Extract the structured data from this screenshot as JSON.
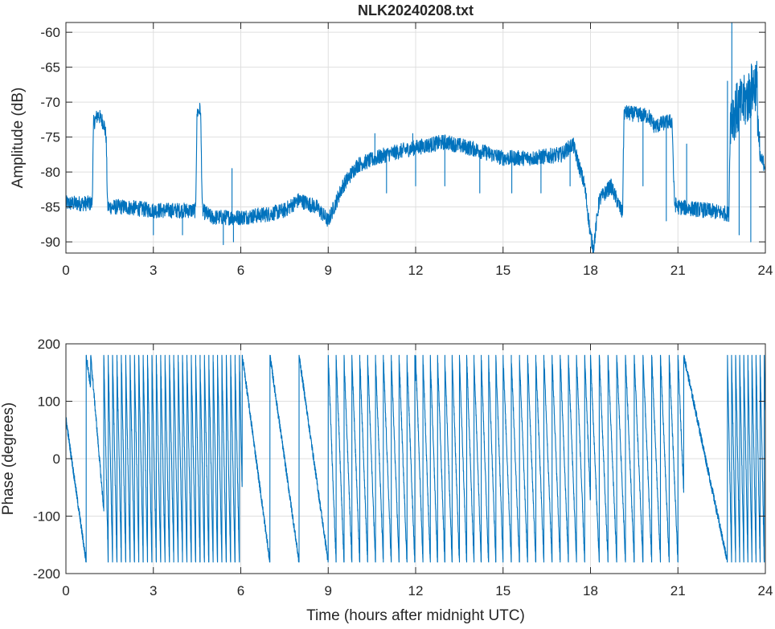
{
  "chart_data": [
    {
      "type": "line",
      "title": "NLK20240208.txt",
      "xlabel": "",
      "ylabel": "Amplitude (dB)",
      "xlim": [
        0,
        24
      ],
      "ylim": [
        -91.6,
        -58.6
      ],
      "xticks": [
        0,
        3,
        6,
        9,
        12,
        15,
        18,
        21,
        24
      ],
      "yticks": [
        -90,
        -85,
        -80,
        -75,
        -70,
        -65,
        -60
      ],
      "grid": true,
      "color": "#0072bd",
      "series": [
        {
          "name": "Amplitude",
          "keypoints": [
            [
              0,
              -84.5
            ],
            [
              0.9,
              -84.5
            ],
            [
              0.95,
              -73
            ],
            [
              1.1,
              -71.8
            ],
            [
              1.3,
              -73
            ],
            [
              1.38,
              -75
            ],
            [
              1.43,
              -85
            ],
            [
              2,
              -85
            ],
            [
              3,
              -85.5
            ],
            [
              4,
              -85.5
            ],
            [
              4.45,
              -85.5
            ],
            [
              4.5,
              -71.5
            ],
            [
              4.62,
              -71
            ],
            [
              4.68,
              -85.5
            ],
            [
              5,
              -86.5
            ],
            [
              6,
              -86.5
            ],
            [
              7,
              -86
            ],
            [
              7.5,
              -85.5
            ],
            [
              8,
              -84
            ],
            [
              8.6,
              -85
            ],
            [
              9,
              -87
            ],
            [
              9.5,
              -82
            ],
            [
              10,
              -79
            ],
            [
              11,
              -77.5
            ],
            [
              12,
              -76.5
            ],
            [
              13,
              -75.7
            ],
            [
              14,
              -76.7
            ],
            [
              15,
              -78
            ],
            [
              16,
              -78
            ],
            [
              17,
              -77.5
            ],
            [
              17.4,
              -76
            ],
            [
              17.8,
              -82
            ],
            [
              18,
              -89
            ],
            [
              18.1,
              -91
            ],
            [
              18.3,
              -84
            ],
            [
              18.7,
              -82
            ],
            [
              19.1,
              -86
            ],
            [
              19.15,
              -71.5
            ],
            [
              20,
              -72
            ],
            [
              20.2,
              -73.5
            ],
            [
              20.5,
              -73
            ],
            [
              20.8,
              -72.7
            ],
            [
              20.88,
              -84.5
            ],
            [
              21,
              -85
            ],
            [
              22,
              -85.5
            ],
            [
              22.75,
              -86
            ],
            [
              22.8,
              -72
            ],
            [
              23.3,
              -70
            ],
            [
              23.7,
              -67
            ],
            [
              23.8,
              -78
            ],
            [
              24,
              -79
            ]
          ],
          "spikes": [
            [
              3.0,
              -89
            ],
            [
              4.0,
              -89
            ],
            [
              5.4,
              -90.4
            ],
            [
              5.75,
              -90
            ],
            [
              5.7,
              -79.5
            ],
            [
              11.0,
              -83
            ],
            [
              12.0,
              -82
            ],
            [
              13.0,
              -82
            ],
            [
              14.2,
              -83
            ],
            [
              15.3,
              -83
            ],
            [
              16.3,
              -83
            ],
            [
              17.3,
              -82
            ],
            [
              10.6,
              -74.5
            ],
            [
              11.9,
              -74.5
            ],
            [
              19.8,
              -82
            ],
            [
              20.6,
              -87
            ],
            [
              21.3,
              -76
            ],
            [
              22.7,
              -67
            ],
            [
              22.85,
              -58.6
            ],
            [
              23.1,
              -89
            ],
            [
              23.5,
              -90
            ]
          ]
        }
      ]
    },
    {
      "type": "line",
      "title": "",
      "xlabel": "Time (hours after midnight UTC)",
      "ylabel": "Phase (degrees)",
      "xlim": [
        0,
        24
      ],
      "ylim": [
        -200,
        200
      ],
      "xticks": [
        0,
        3,
        6,
        9,
        12,
        15,
        18,
        21,
        24
      ],
      "yticks": [
        -200,
        -100,
        0,
        100,
        200
      ],
      "grid": true,
      "color": "#0072bd",
      "series": [
        {
          "name": "Phase",
          "wrap_range": [
            -180,
            180
          ],
          "segments": [
            {
              "from": 0,
              "to": 0.85,
              "start": 70,
              "period_hours": 1.0
            },
            {
              "from": 0.85,
              "to": 1.3,
              "start": 180,
              "period_hours": 0.6
            },
            {
              "from": 1.3,
              "to": 6.05,
              "start": 180,
              "period_hours": 0.15
            },
            {
              "from": 6.05,
              "to": 7.0,
              "start": 180,
              "period_hours": 0.95
            },
            {
              "from": 7.0,
              "to": 8.0,
              "start": 180,
              "period_hours": 1.0
            },
            {
              "from": 8.0,
              "to": 9.0,
              "start": 180,
              "period_hours": 1.0
            },
            {
              "from": 9.0,
              "to": 12.0,
              "start": 180,
              "period_hours": 0.27
            },
            {
              "from": 12.0,
              "to": 15.0,
              "start": 180,
              "period_hours": 0.25
            },
            {
              "from": 15.0,
              "to": 18.0,
              "start": 180,
              "period_hours": 0.28
            },
            {
              "from": 18.0,
              "to": 21.2,
              "start": 180,
              "period_hours": 0.3
            },
            {
              "from": 21.2,
              "to": 22.7,
              "start": 180,
              "period_hours": 1.5
            },
            {
              "from": 22.7,
              "to": 24.0,
              "start": 180,
              "period_hours": 0.14
            }
          ]
        }
      ]
    }
  ]
}
